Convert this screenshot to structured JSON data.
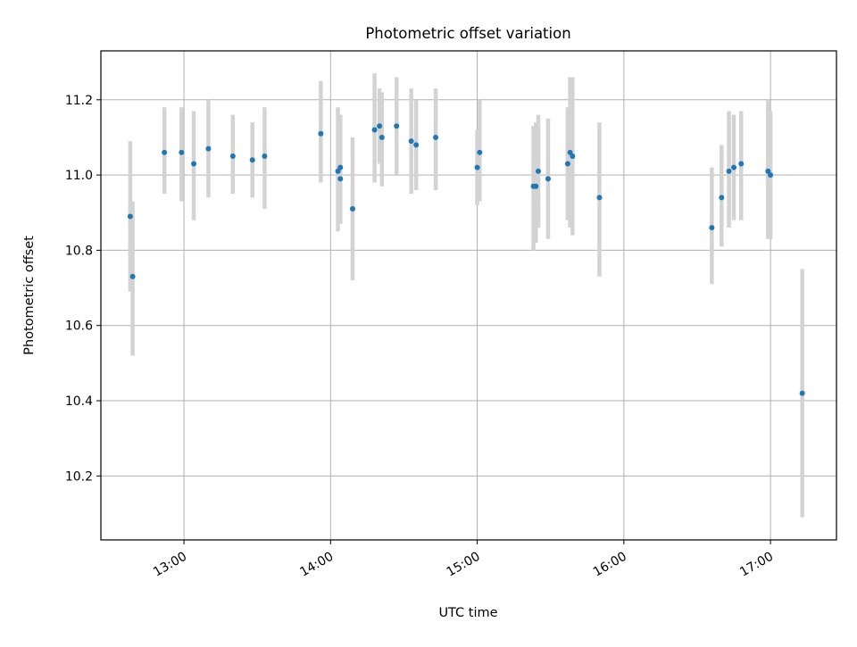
{
  "chart_data": {
    "type": "scatter",
    "title": "Photometric offset variation",
    "xlabel": "UTC time",
    "ylabel": "Photometric offset",
    "x_unit": "time (HH:MM UTC)",
    "xlim": [
      "12:26",
      "17:27"
    ],
    "ylim": [
      10.03,
      11.33
    ],
    "x_ticks": [
      "13:00",
      "14:00",
      "15:00",
      "16:00",
      "17:00"
    ],
    "y_ticks": [
      "10.2",
      "10.4",
      "10.6",
      "10.8",
      "11.0",
      "11.2"
    ],
    "grid": true,
    "legend": "none",
    "colors": {
      "marker": "#1f77b4",
      "errorbar": "#d3d3d3",
      "grid": "#b0b0b0",
      "axes": "#000000"
    },
    "series": [
      {
        "points": [
          {
            "x": "12:38",
            "y": 10.89,
            "ylo": 10.69,
            "yhi": 11.09
          },
          {
            "x": "12:39",
            "y": 10.73,
            "ylo": 10.52,
            "yhi": 10.93
          },
          {
            "x": "12:52",
            "y": 11.06,
            "ylo": 10.95,
            "yhi": 11.18
          },
          {
            "x": "12:59",
            "y": 11.06,
            "ylo": 10.93,
            "yhi": 11.18
          },
          {
            "x": "13:04",
            "y": 11.03,
            "ylo": 10.88,
            "yhi": 11.17
          },
          {
            "x": "13:10",
            "y": 11.07,
            "ylo": 10.94,
            "yhi": 11.2
          },
          {
            "x": "13:20",
            "y": 11.05,
            "ylo": 10.95,
            "yhi": 11.16
          },
          {
            "x": "13:28",
            "y": 11.04,
            "ylo": 10.94,
            "yhi": 11.14
          },
          {
            "x": "13:33",
            "y": 11.05,
            "ylo": 10.91,
            "yhi": 11.18
          },
          {
            "x": "13:56",
            "y": 11.11,
            "ylo": 10.98,
            "yhi": 11.25
          },
          {
            "x": "14:03",
            "y": 11.01,
            "ylo": 10.85,
            "yhi": 11.18
          },
          {
            "x": "14:04",
            "y": 11.02,
            "ylo": 10.87,
            "yhi": 11.16
          },
          {
            "x": "14:04",
            "y": 10.99,
            "ylo": 10.88,
            "yhi": 11.14
          },
          {
            "x": "14:09",
            "y": 10.91,
            "ylo": 10.72,
            "yhi": 11.1
          },
          {
            "x": "14:18",
            "y": 11.12,
            "ylo": 10.98,
            "yhi": 11.27
          },
          {
            "x": "14:20",
            "y": 11.13,
            "ylo": 11.03,
            "yhi": 11.23
          },
          {
            "x": "14:21",
            "y": 11.1,
            "ylo": 10.97,
            "yhi": 11.22
          },
          {
            "x": "14:27",
            "y": 11.13,
            "ylo": 11.0,
            "yhi": 11.26
          },
          {
            "x": "14:33",
            "y": 11.09,
            "ylo": 10.95,
            "yhi": 11.23
          },
          {
            "x": "14:35",
            "y": 11.08,
            "ylo": 10.96,
            "yhi": 11.2
          },
          {
            "x": "14:43",
            "y": 11.1,
            "ylo": 10.96,
            "yhi": 11.23
          },
          {
            "x": "15:00",
            "y": 11.02,
            "ylo": 10.92,
            "yhi": 11.12
          },
          {
            "x": "15:01",
            "y": 11.06,
            "ylo": 10.93,
            "yhi": 11.2
          },
          {
            "x": "15:23",
            "y": 10.97,
            "ylo": 10.8,
            "yhi": 11.13
          },
          {
            "x": "15:24",
            "y": 10.97,
            "ylo": 10.82,
            "yhi": 11.14
          },
          {
            "x": "15:25",
            "y": 11.01,
            "ylo": 10.86,
            "yhi": 11.16
          },
          {
            "x": "15:29",
            "y": 10.99,
            "ylo": 10.83,
            "yhi": 11.15
          },
          {
            "x": "15:37",
            "y": 11.03,
            "ylo": 10.88,
            "yhi": 11.18
          },
          {
            "x": "15:38",
            "y": 11.06,
            "ylo": 10.86,
            "yhi": 11.26
          },
          {
            "x": "15:39",
            "y": 11.05,
            "ylo": 10.84,
            "yhi": 11.26
          },
          {
            "x": "15:50",
            "y": 10.94,
            "ylo": 10.73,
            "yhi": 11.14
          },
          {
            "x": "16:36",
            "y": 10.86,
            "ylo": 10.71,
            "yhi": 11.02
          },
          {
            "x": "16:40",
            "y": 10.94,
            "ylo": 10.81,
            "yhi": 11.08
          },
          {
            "x": "16:43",
            "y": 11.01,
            "ylo": 10.86,
            "yhi": 11.17
          },
          {
            "x": "16:45",
            "y": 11.02,
            "ylo": 10.88,
            "yhi": 11.16
          },
          {
            "x": "16:48",
            "y": 11.03,
            "ylo": 10.88,
            "yhi": 11.17
          },
          {
            "x": "16:59",
            "y": 11.01,
            "ylo": 10.83,
            "yhi": 11.2
          },
          {
            "x": "17:00",
            "y": 11.0,
            "ylo": 10.83,
            "yhi": 11.17
          },
          {
            "x": "17:13",
            "y": 10.42,
            "ylo": 10.09,
            "yhi": 10.75
          }
        ]
      }
    ]
  }
}
